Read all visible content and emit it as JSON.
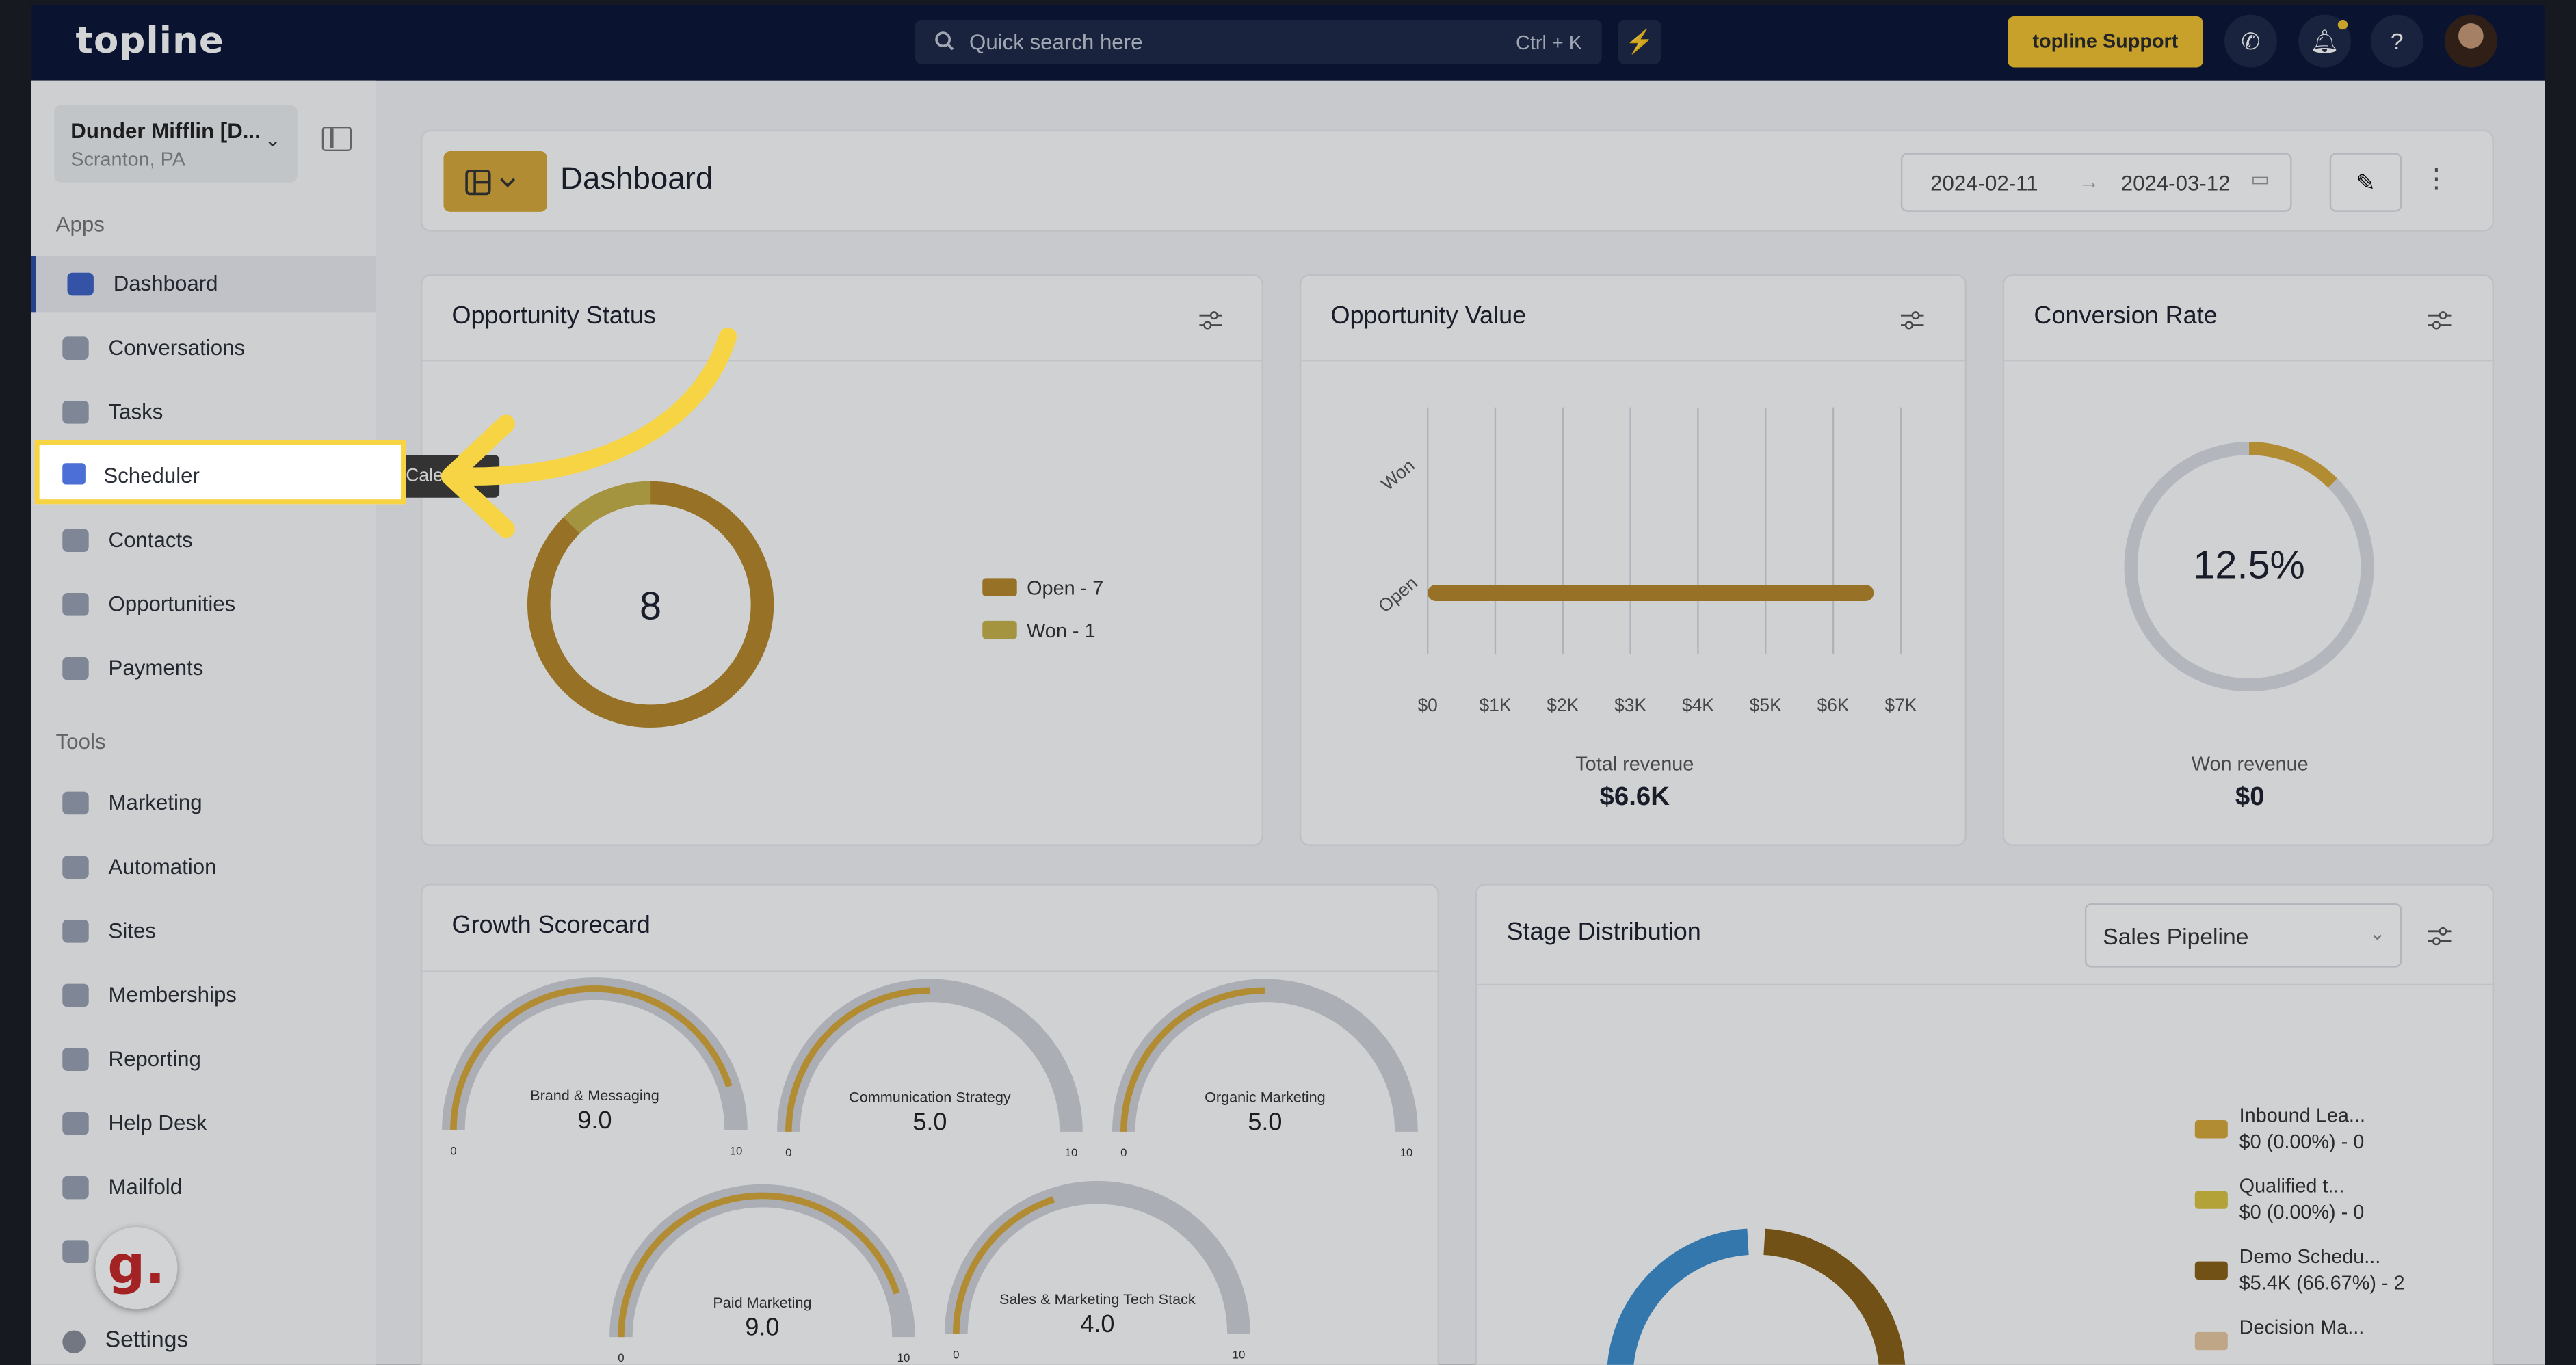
{
  "topbar": {
    "logo": "topline",
    "search_placeholder": "Quick search here",
    "search_shortcut": "Ctrl + K",
    "support_label": "topline Support"
  },
  "account": {
    "name": "Dunder Mifflin [D...",
    "location": "Scranton, PA"
  },
  "sidebar": {
    "apps_heading": "Apps",
    "apps": [
      {
        "label": "Dashboard",
        "active": true
      },
      {
        "label": "Conversations"
      },
      {
        "label": "Tasks"
      },
      {
        "label": "Scheduler"
      },
      {
        "label": "Contacts"
      },
      {
        "label": "Opportunities"
      },
      {
        "label": "Payments"
      }
    ],
    "tools_heading": "Tools",
    "tools": [
      {
        "label": "Marketing"
      },
      {
        "label": "Automation"
      },
      {
        "label": "Sites"
      },
      {
        "label": "Memberships"
      },
      {
        "label": "Reporting"
      },
      {
        "label": "Help Desk"
      },
      {
        "label": "Mailfold"
      }
    ],
    "settings_label": "Settings",
    "tooltip": "Cale"
  },
  "badge": {
    "letter": "g."
  },
  "dashboard": {
    "title": "Dashboard",
    "date_from": "2024-02-11",
    "date_to": "2024-03-12",
    "arrow": "→"
  },
  "opportunity_status": {
    "title": "Opportunity Status",
    "total": "8",
    "legend": [
      {
        "label": "Open - 7",
        "color": "#b8892b"
      },
      {
        "label": "Won - 1",
        "color": "#c9b24a"
      }
    ]
  },
  "opportunity_value": {
    "title": "Opportunity Value",
    "total_label": "Total revenue",
    "total_value": "$6.6K"
  },
  "conversion_rate": {
    "title": "Conversion Rate",
    "rate": "12.5%",
    "won_label": "Won revenue",
    "won_value": "$0"
  },
  "growth_scorecard": {
    "title": "Growth Scorecard"
  },
  "stage_distribution": {
    "title": "Stage Distribution",
    "pipeline": "Sales Pipeline",
    "legend": [
      {
        "name": "Inbound Lea...",
        "value": "$0 (0.00%) - 0",
        "color": "#d8a93a"
      },
      {
        "name": "Qualified t...",
        "value": "$0 (0.00%) - 0",
        "color": "#d9c441"
      },
      {
        "name": "Demo Schedu...",
        "value": "$5.4K (66.67%) - 2",
        "color": "#8a6119"
      },
      {
        "name": "Decision Ma...",
        "value": "",
        "color": "#e8c9a2"
      }
    ]
  },
  "chart_data": [
    {
      "type": "pie",
      "title": "Opportunity Status",
      "categories": [
        "Open",
        "Won"
      ],
      "values": [
        7,
        1
      ],
      "colors": [
        "#b8892b",
        "#c9b24a"
      ]
    },
    {
      "type": "bar",
      "title": "Opportunity Value",
      "categories": [
        "Won",
        "Open"
      ],
      "values": [
        0,
        6600
      ],
      "xlim": [
        0,
        7000
      ],
      "xticks": [
        "$0",
        "$1K",
        "$2K",
        "$3K",
        "$4K",
        "$5K",
        "$6K",
        "$7K"
      ],
      "orientation": "horizontal"
    },
    {
      "type": "pie",
      "title": "Conversion Rate",
      "values": [
        12.5,
        87.5
      ],
      "categories": [
        "Won",
        "Other"
      ]
    },
    {
      "type": "gauge",
      "title": "Growth Scorecard",
      "range": [
        0,
        10
      ],
      "min_label": "0",
      "max_label": "10",
      "categories": [
        "Brand & Messaging",
        "Communication Strategy",
        "Organic Marketing",
        "Paid Marketing",
        "Sales & Marketing Tech Stack"
      ],
      "values": [
        9.0,
        5.0,
        5.0,
        9.0,
        4.0
      ],
      "value_labels": [
        "9.0",
        "5.0",
        "5.0",
        "9.0",
        "4.0"
      ]
    }
  ]
}
